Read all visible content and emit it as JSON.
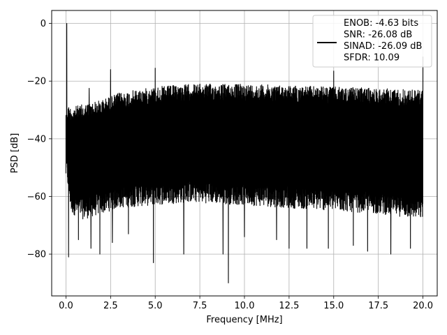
{
  "chart_data": {
    "type": "line",
    "title": "",
    "xlabel": "Frequency [MHz]",
    "ylabel": "PSD [dB]",
    "xlim": [
      -0.8,
      20.8
    ],
    "ylim": [
      -94.5,
      4.5
    ],
    "xticks": [
      0.0,
      2.5,
      5.0,
      7.5,
      10.0,
      12.5,
      15.0,
      17.5,
      20.0
    ],
    "xtick_labels": [
      "0.0",
      "2.5",
      "5.0",
      "7.5",
      "10.0",
      "12.5",
      "15.0",
      "17.5",
      "20.0"
    ],
    "yticks": [
      0,
      -20,
      -40,
      -60,
      -80
    ],
    "ytick_labels": [
      "0",
      "−20",
      "−40",
      "−60",
      "−80"
    ],
    "grid": true,
    "legend_position": "top-right",
    "line_color": "#000000",
    "series": [
      {
        "legend": [
          "ENOB: -4.63 bits",
          "SNR: -26.08 dB",
          "SINAD: -26.09 dB",
          "SFDR: 10.09"
        ],
        "envelope": {
          "x": [
            0.0,
            0.3,
            1.0,
            2.0,
            3.0,
            5.0,
            7.0,
            10.0,
            12.5,
            15.0,
            17.5,
            20.0
          ],
          "upper": [
            -28.0,
            -29.0,
            -28.0,
            -26.5,
            -24.0,
            -22.0,
            -21.0,
            -21.0,
            -21.5,
            -22.0,
            -22.5,
            -23.0
          ],
          "lower": [
            -52.0,
            -66.0,
            -68.0,
            -66.0,
            -64.0,
            -63.0,
            -62.0,
            -63.0,
            -64.0,
            -65.0,
            -66.0,
            -68.0
          ]
        },
        "peaks": [
          {
            "x": 0.05,
            "y": 0.0
          },
          {
            "x": 2.5,
            "y": -16.0
          },
          {
            "x": 5.0,
            "y": -15.5
          },
          {
            "x": 15.0,
            "y": -16.5
          },
          {
            "x": 20.0,
            "y": -11.5
          },
          {
            "x": 1.3,
            "y": -22.5
          }
        ],
        "dips": [
          {
            "x": 0.15,
            "y": -81.0
          },
          {
            "x": 0.7,
            "y": -75.0
          },
          {
            "x": 1.4,
            "y": -78.0
          },
          {
            "x": 1.9,
            "y": -80.0
          },
          {
            "x": 2.6,
            "y": -76.0
          },
          {
            "x": 3.5,
            "y": -73.0
          },
          {
            "x": 4.9,
            "y": -83.0
          },
          {
            "x": 6.6,
            "y": -80.0
          },
          {
            "x": 8.8,
            "y": -80.0
          },
          {
            "x": 9.1,
            "y": -90.0
          },
          {
            "x": 10.0,
            "y": -74.0
          },
          {
            "x": 11.8,
            "y": -75.0
          },
          {
            "x": 12.5,
            "y": -78.0
          },
          {
            "x": 13.5,
            "y": -78.0
          },
          {
            "x": 14.7,
            "y": -78.0
          },
          {
            "x": 16.1,
            "y": -77.0
          },
          {
            "x": 16.9,
            "y": -79.0
          },
          {
            "x": 18.2,
            "y": -80.0
          },
          {
            "x": 19.3,
            "y": -78.0
          }
        ]
      }
    ]
  }
}
